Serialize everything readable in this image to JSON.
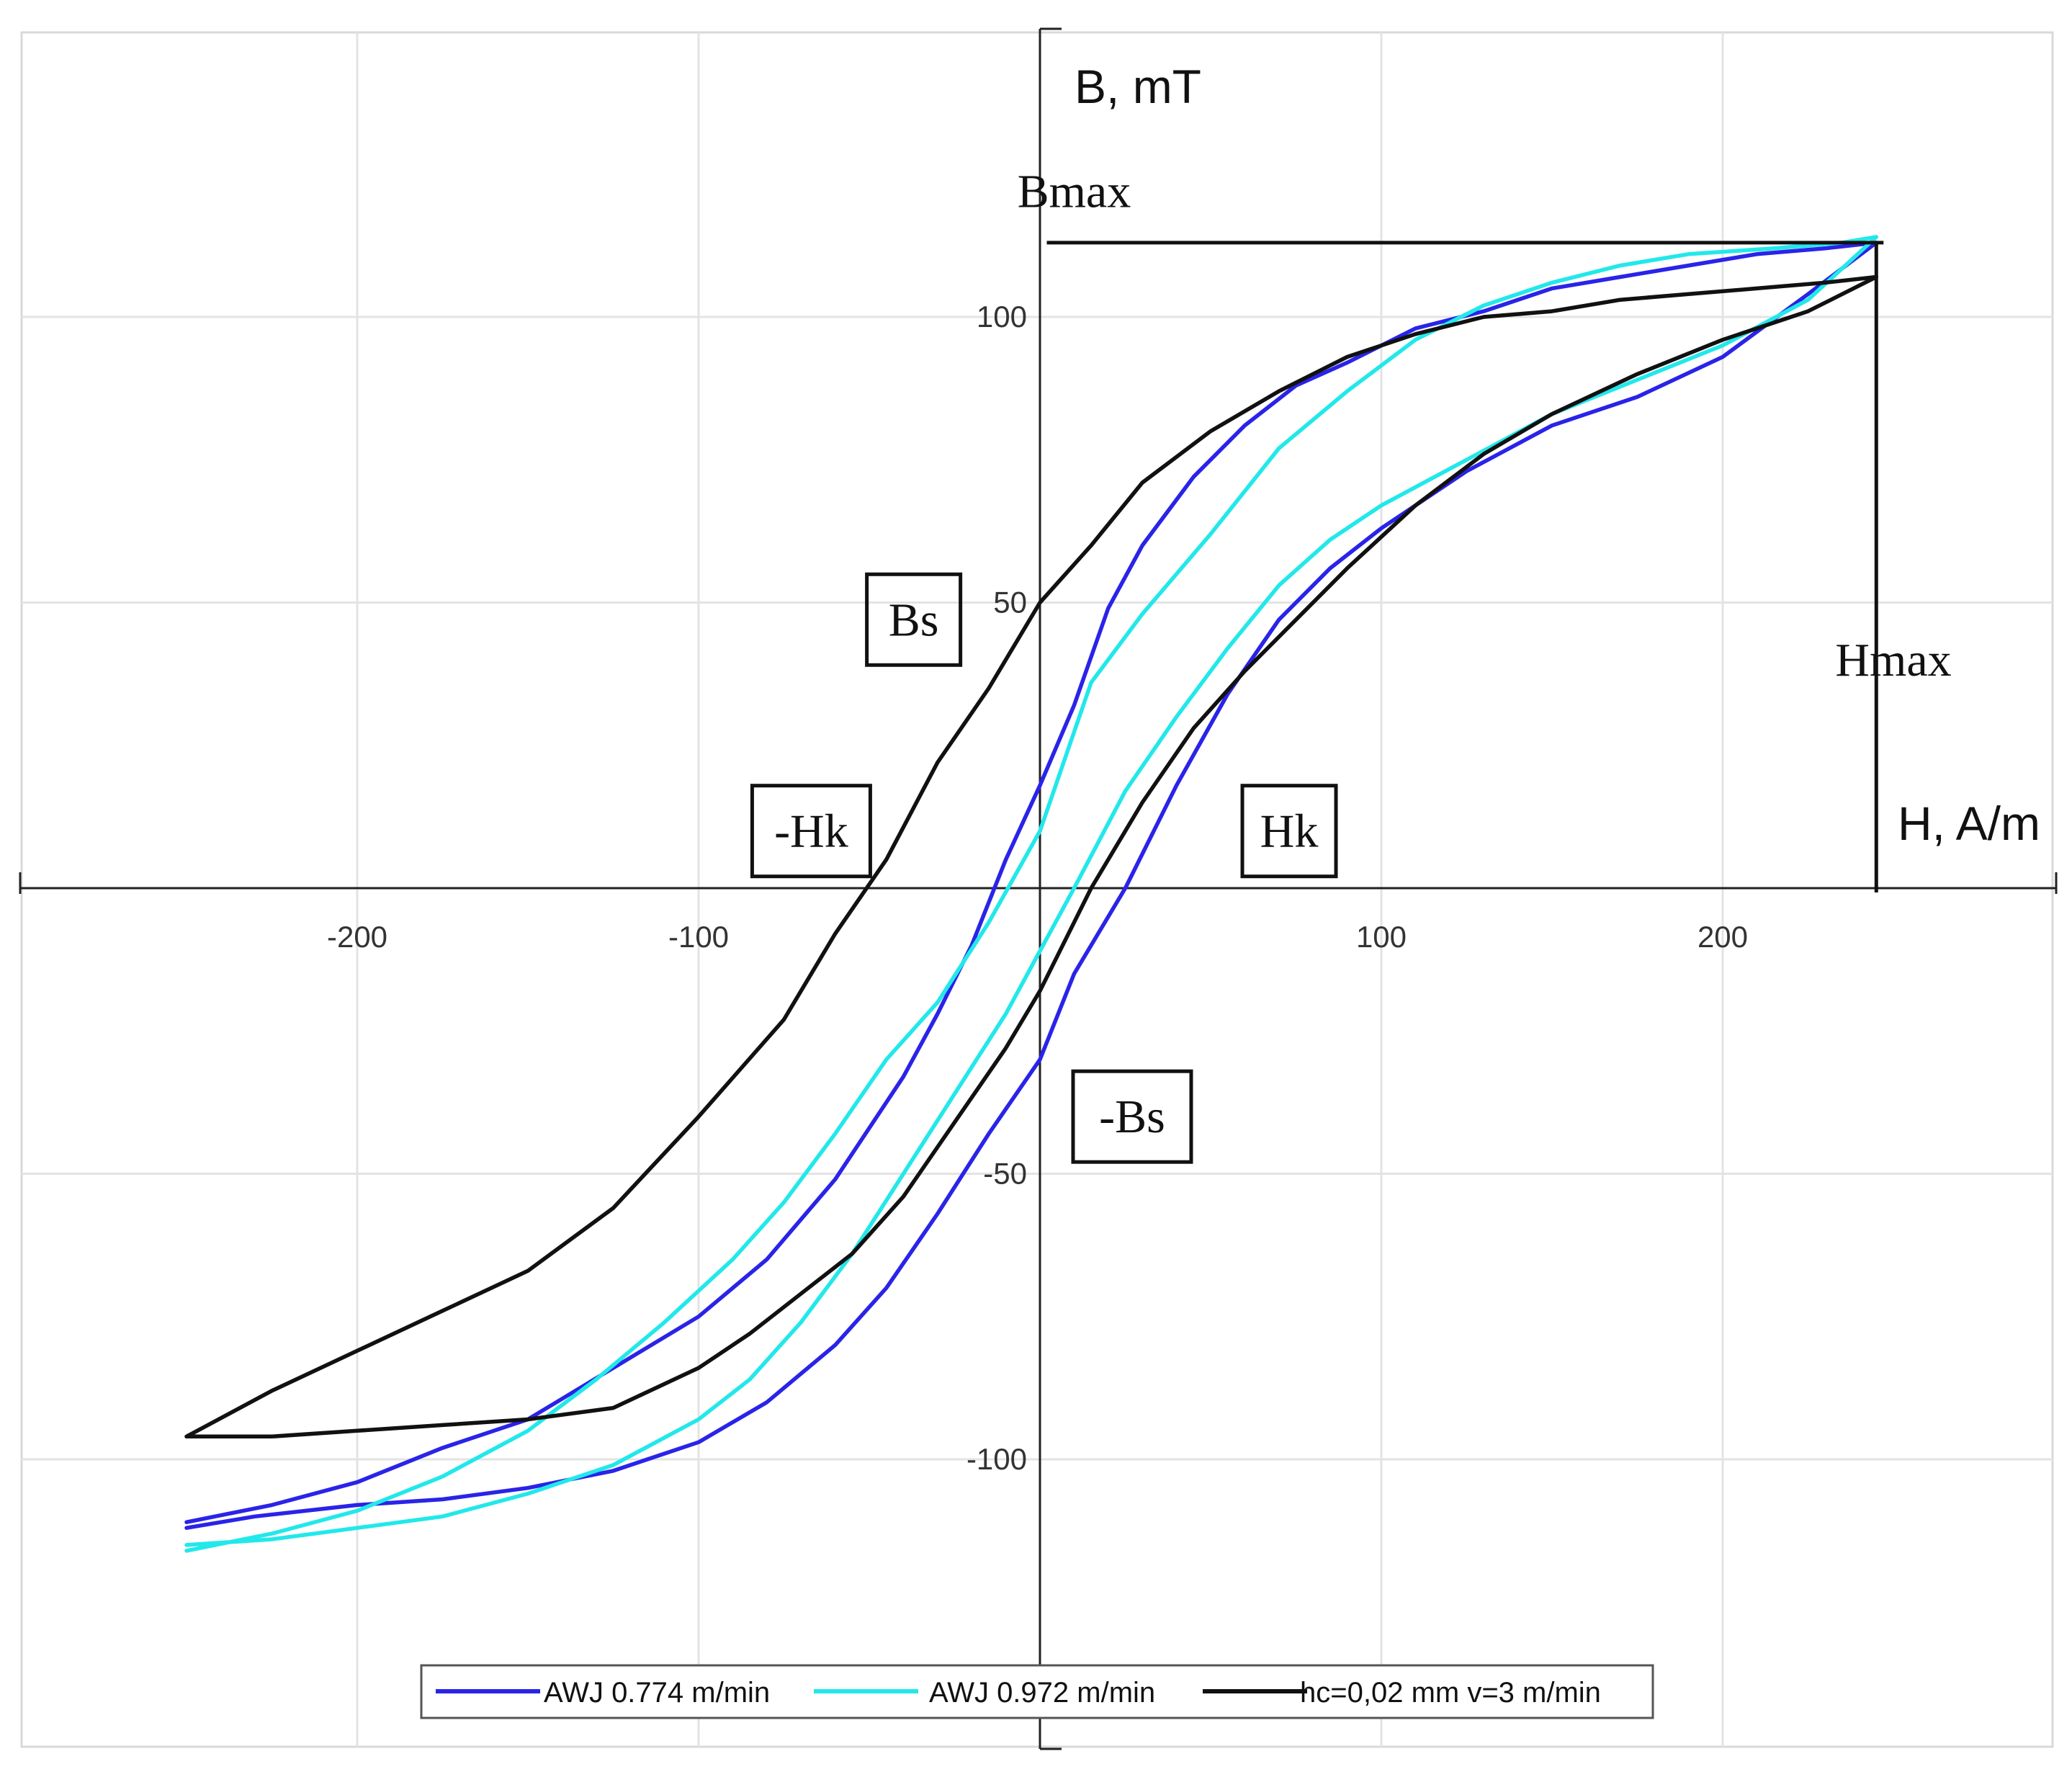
{
  "chart_data": {
    "type": "line",
    "title": "",
    "xlabel": "H, A/m",
    "ylabel": "B, mT",
    "xlim": [
      -300,
      300
    ],
    "ylim": [
      -150,
      150
    ],
    "xticks": [
      -200,
      -100,
      100,
      200
    ],
    "yticks": [
      100,
      50,
      -50,
      -100
    ],
    "grid": true,
    "legend_position": "bottom-center",
    "series": [
      {
        "name": "AWJ 0.774 m/min",
        "color": "#2a23e8",
        "x": [
          -250,
          -230,
          -200,
          -175,
          -150,
          -125,
          -100,
          -80,
          -60,
          -45,
          -30,
          -15,
          0,
          10,
          25,
          40,
          55,
          70,
          85,
          100,
          125,
          150,
          175,
          200,
          225,
          245,
          230,
          210,
          190,
          170,
          150,
          130,
          110,
          90,
          75,
          60,
          45,
          30,
          20,
          10,
          0,
          -10,
          -20,
          -30,
          -40,
          -60,
          -80,
          -100,
          -125,
          -150,
          -175,
          -200,
          -225,
          -250
        ],
        "y": [
          -112,
          -110,
          -108,
          -107,
          -105,
          -102,
          -97,
          -90,
          -80,
          -70,
          -57,
          -43,
          -30,
          -15,
          0,
          18,
          34,
          47,
          56,
          63,
          73,
          81,
          86,
          93,
          104,
          113,
          112,
          111,
          109,
          107,
          105,
          101,
          98,
          92,
          88,
          81,
          72,
          60,
          49,
          32,
          18,
          5,
          -10,
          -22,
          -33,
          -51,
          -65,
          -75,
          -84,
          -93,
          -98,
          -104,
          -108,
          -111
        ]
      },
      {
        "name": "AWJ 0.972 m/min",
        "color": "#22e8ea",
        "x": [
          -250,
          -225,
          -200,
          -175,
          -150,
          -125,
          -100,
          -85,
          -70,
          -55,
          -40,
          -25,
          -10,
          0,
          10,
          25,
          40,
          55,
          70,
          85,
          100,
          125,
          150,
          175,
          200,
          225,
          245,
          235,
          215,
          190,
          170,
          150,
          130,
          110,
          90,
          70,
          50,
          30,
          15,
          0,
          -15,
          -30,
          -45,
          -60,
          -75,
          -90,
          -110,
          -130,
          -150,
          -175,
          -200,
          -225,
          -250
        ],
        "y": [
          -115,
          -114,
          -112,
          -110,
          -106,
          -101,
          -93,
          -86,
          -76,
          -64,
          -50,
          -36,
          -22,
          -11,
          0,
          17,
          30,
          42,
          53,
          61,
          67,
          75,
          83,
          89,
          95,
          103,
          114,
          113,
          112,
          111,
          109,
          106,
          102,
          96,
          87,
          77,
          62,
          48,
          36,
          10,
          -6,
          -20,
          -30,
          -43,
          -55,
          -65,
          -76,
          -86,
          -95,
          -103,
          -109,
          -113,
          -116
        ]
      },
      {
        "name": "hc=0,02 mm v=3 m/min",
        "color": "#111111",
        "x": [
          -250,
          -225,
          -200,
          -175,
          -150,
          -125,
          -100,
          -85,
          -70,
          -55,
          -40,
          -25,
          -10,
          0,
          15,
          30,
          45,
          60,
          75,
          90,
          110,
          130,
          150,
          175,
          200,
          225,
          245,
          230,
          210,
          190,
          170,
          150,
          130,
          110,
          90,
          70,
          50,
          30,
          15,
          0,
          -15,
          -30,
          -45,
          -60,
          -75,
          -100,
          -125,
          -150,
          -175,
          -200,
          -225,
          -250
        ],
        "y": [
          -96,
          -96,
          -95,
          -94,
          -93,
          -91,
          -84,
          -78,
          -71,
          -64,
          -54,
          -41,
          -28,
          -18,
          0,
          15,
          28,
          38,
          47,
          56,
          67,
          76,
          83,
          90,
          96,
          101,
          107,
          106,
          105,
          104,
          103,
          101,
          100,
          97,
          93,
          87,
          80,
          71,
          60,
          50,
          35,
          22,
          5,
          -8,
          -23,
          -40,
          -56,
          -67,
          -74,
          -81,
          -88,
          -96
        ]
      }
    ],
    "annotations": [
      {
        "text": "Bmax",
        "x": 10,
        "y": 122,
        "boxed": false
      },
      {
        "text": "Hmax",
        "x": 250,
        "y": 40,
        "boxed": false
      },
      {
        "text": "Bs",
        "x": -37,
        "y": 47,
        "boxed": true
      },
      {
        "text": "-Bs",
        "x": 27,
        "y": -40,
        "boxed": true
      },
      {
        "text": "-Hk",
        "x": -67,
        "y": 10,
        "boxed": true
      },
      {
        "text": "Hk",
        "x": 73,
        "y": 10,
        "boxed": true
      }
    ],
    "reference_lines": {
      "bmax_y": 113,
      "bmax_x_range": [
        2,
        245
      ],
      "hmax_x": 245,
      "hmax_y_range": [
        0,
        113
      ]
    }
  }
}
